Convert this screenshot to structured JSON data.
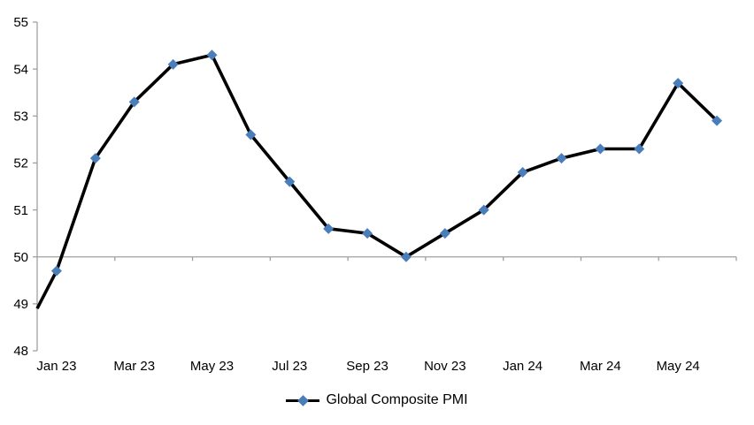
{
  "chart_data": {
    "type": "line",
    "title": "",
    "legend_label": "Global Composite PMI",
    "legend_position": "bottom-center",
    "categories": [
      "Jan 23",
      "Feb 23",
      "Mar 23",
      "Apr 23",
      "May 23",
      "Jun 23",
      "Jul 23",
      "Aug 23",
      "Sep 23",
      "Oct 23",
      "Nov 23",
      "Dec 23",
      "Jan 24",
      "Feb 24",
      "Mar 24",
      "Apr 24",
      "May 24",
      "Jun 24"
    ],
    "series": [
      {
        "name": "Global Composite PMI",
        "values": [
          49.7,
          52.1,
          53.3,
          54.1,
          54.3,
          52.6,
          51.6,
          50.6,
          50.5,
          50.0,
          50.5,
          51.0,
          51.8,
          52.1,
          52.3,
          52.3,
          53.7,
          52.9
        ]
      }
    ],
    "line_enters_left_edge_at": 48.9,
    "x_tick_labels": [
      "Jan 23",
      "Mar 23",
      "May 23",
      "Jul 23",
      "Sep 23",
      "Nov 23",
      "Jan 24",
      "Mar 24",
      "May 24"
    ],
    "x_label_every_n_categories": 2,
    "y_ticks": [
      48,
      49,
      50,
      51,
      52,
      53,
      54,
      55
    ],
    "ylim": [
      48,
      55
    ],
    "category_axis_crosses_at_value": 50,
    "grid": false,
    "colors": {
      "line": "#000000",
      "marker": "#4A7EBB",
      "axis": "#A0A0A0",
      "text": "#000000",
      "background": "#FFFFFF"
    }
  }
}
